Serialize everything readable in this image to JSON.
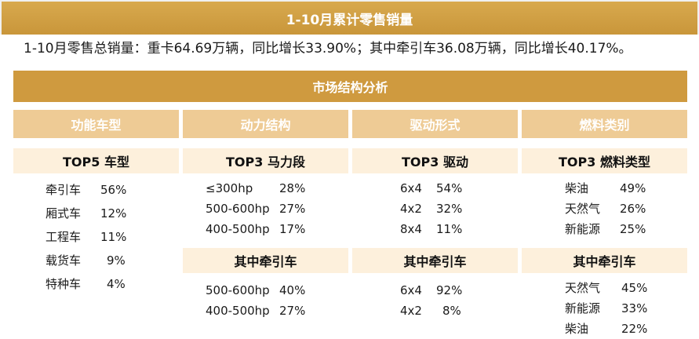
{
  "banner": {
    "title": "1-10月累计零售销量"
  },
  "summary": {
    "text": "1-10月零售总销量：重卡64.69万辆，同比增长33.90%；其中牵引车36.08万辆，同比增长40.17%。"
  },
  "section": {
    "title": "市场结构分析"
  },
  "columns": [
    {
      "header": "功能车型",
      "blocks": [
        {
          "title": "TOP5 车型",
          "rows": [
            {
              "k": "牵引车",
              "v": "56%"
            },
            {
              "k": "厢式车",
              "v": "12%"
            },
            {
              "k": "工程车",
              "v": "11%"
            },
            {
              "k": "载货车",
              "v": "9%"
            },
            {
              "k": "特种车",
              "v": "4%"
            }
          ]
        }
      ]
    },
    {
      "header": "动力结构",
      "blocks": [
        {
          "title": "TOP3 马力段",
          "rows": [
            {
              "k": "≤300hp",
              "v": "28%"
            },
            {
              "k": "500-600hp",
              "v": "27%"
            },
            {
              "k": "400-500hp",
              "v": "17%"
            }
          ]
        },
        {
          "title": "其中牵引车",
          "rows": [
            {
              "k": "500-600hp",
              "v": "40%"
            },
            {
              "k": "400-500hp",
              "v": "27%"
            }
          ]
        }
      ]
    },
    {
      "header": "驱动形式",
      "blocks": [
        {
          "title": "TOP3 驱动",
          "rows": [
            {
              "k": "6x4",
              "v": "54%"
            },
            {
              "k": "4x2",
              "v": "32%"
            },
            {
              "k": "8x4",
              "v": "11%"
            }
          ]
        },
        {
          "title": "其中牵引车",
          "rows": [
            {
              "k": "6x4",
              "v": "92%"
            },
            {
              "k": "4x2",
              "v": "8%"
            }
          ]
        }
      ]
    },
    {
      "header": "燃料类别",
      "blocks": [
        {
          "title": "TOP3 燃料类型",
          "rows": [
            {
              "k": "柴油",
              "v": "49%"
            },
            {
              "k": "天然气",
              "v": "26%"
            },
            {
              "k": "新能源",
              "v": "25%"
            }
          ]
        },
        {
          "title": "其中牵引车",
          "rows": [
            {
              "k": "天然气",
              "v": "45%"
            },
            {
              "k": "新能源",
              "v": "33%"
            },
            {
              "k": "柴油",
              "v": "22%"
            }
          ]
        }
      ]
    }
  ],
  "colors": {
    "banner": "#c9963a",
    "section": "#cf9a3f",
    "column_header": "#eecb95",
    "subhead": "#fdf0dc"
  }
}
